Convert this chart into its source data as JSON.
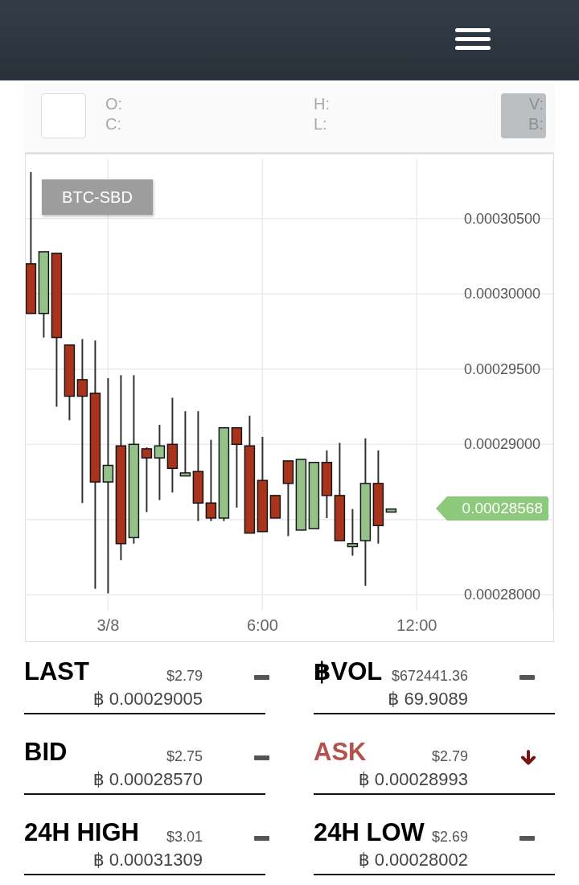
{
  "chart_data": {
    "type": "candlestick",
    "title": "BTC-SBD",
    "x": [
      "--03-07T21:00",
      "--03-07T21:30",
      "--03-07T22:00",
      "--03-07T22:30",
      "--03-07T23:00",
      "--03-07T23:30",
      "--03-08T00:00",
      "--03-08T00:30",
      "--03-08T01:00",
      "--03-08T01:30",
      "--03-08T02:00",
      "--03-08T02:30",
      "--03-08T03:00",
      "--03-08T03:30",
      "--03-08T04:00",
      "--03-08T04:30",
      "--03-08T05:00",
      "--03-08T05:30",
      "--03-08T06:00",
      "--03-08T06:30",
      "--03-08T07:00",
      "--03-08T07:30",
      "--03-08T08:00",
      "--03-08T08:30",
      "--03-08T09:00",
      "--03-08T09:30",
      "--03-08T10:00",
      "--03-08T10:30",
      "--03-08T11:00"
    ],
    "ohlc": [
      [
        0.000302,
        0.0003081,
        0.0002987,
        0.0002987
      ],
      [
        0.0002987,
        0.0003028,
        0.0002971,
        0.0003028
      ],
      [
        0.0003027,
        0.0003027,
        0.0002925,
        0.0002971
      ],
      [
        0.0002966,
        0.0002966,
        0.0002916,
        0.0002932
      ],
      [
        0.0002943,
        0.000297,
        0.0002861,
        0.0002932
      ],
      [
        0.0002934,
        0.0002969,
        0.0002804,
        0.0002875
      ],
      [
        0.0002875,
        0.0002944,
        0.0002801,
        0.0002886
      ],
      [
        0.0002899,
        0.0002946,
        0.0002823,
        0.0002834
      ],
      [
        0.0002838,
        0.0002946,
        0.0002834,
        0.00029
      ],
      [
        0.0002897,
        0.0002898,
        0.0002855,
        0.0002891
      ],
      [
        0.0002891,
        0.0002913,
        0.0002863,
        0.0002899
      ],
      [
        0.00029,
        0.0002931,
        0.0002868,
        0.0002884
      ],
      [
        0.0002879,
        0.0002922,
        0.0002879,
        0.0002881
      ],
      [
        0.0002882,
        0.0002922,
        0.0002849,
        0.0002861
      ],
      [
        0.0002861,
        0.0002903,
        0.0002849,
        0.0002851
      ],
      [
        0.0002851,
        0.0002911,
        0.0002849,
        0.0002911
      ],
      [
        0.0002911,
        0.0002911,
        0.0002858,
        0.00029
      ],
      [
        0.0002899,
        0.0002919,
        0.0002841,
        0.0002841
      ],
      [
        0.0002876,
        0.0002905,
        0.0002842,
        0.0002842
      ],
      [
        0.0002866,
        0.0002866,
        0.0002851,
        0.0002851
      ],
      [
        0.0002889,
        0.0002889,
        0.0002839,
        0.0002874
      ],
      [
        0.0002843,
        0.000289,
        0.0002843,
        0.000289
      ],
      [
        0.0002844,
        0.0002888,
        0.0002844,
        0.0002888
      ],
      [
        0.0002888,
        0.0002896,
        0.0002851,
        0.0002866
      ],
      [
        0.0002866,
        0.0002901,
        0.0002836,
        0.0002836
      ],
      [
        0.0002832,
        0.0002857,
        0.0002826,
        0.0002834
      ],
      [
        0.0002836,
        0.0002904,
        0.0002806,
        0.0002874
      ],
      [
        0.0002874,
        0.0002896,
        0.0002834,
        0.0002846
      ],
      [
        0.0002855,
        0.0002857,
        0.0002855,
        0.0002857
      ]
    ],
    "colors": [
      "#a8341c",
      "#94c28a",
      "#a8341c",
      "#a8341c",
      "#a8341c",
      "#a8341c",
      "#94c28a",
      "#a8341c",
      "#94c28a",
      "#a8341c",
      "#94c28a",
      "#a8341c",
      "#94c28a",
      "#a8341c",
      "#a8341c",
      "#94c28a",
      "#a8341c",
      "#a8341c",
      "#a8341c",
      "#a8341c",
      "#a8341c",
      "#94c28a",
      "#94c28a",
      "#a8341c",
      "#a8341c",
      "#94c28a",
      "#94c28a",
      "#a8341c",
      "#94c28a"
    ],
    "xlim": [
      "--03-07T20:48",
      "--03-08T17:18"
    ],
    "xticks": [
      {
        "value": "--03-08T00:00",
        "label": "3/8"
      },
      {
        "value": "--03-08T06:00",
        "label": "6:00"
      },
      {
        "value": "--03-08T12:00",
        "label": "12:00"
      }
    ],
    "ylim": [
      0.000279,
      0.000309
    ],
    "yticks": [
      {
        "value": 0.00028,
        "label": "0.00028000"
      },
      {
        "value": 0.000285,
        "label": null
      },
      {
        "value": 0.00029,
        "label": "0.00029000"
      },
      {
        "value": 0.000295,
        "label": "0.00029500"
      },
      {
        "value": 0.0003,
        "label": "0.00030000"
      },
      {
        "value": 0.000305,
        "label": "0.00030500"
      }
    ],
    "grid": true,
    "annotations": [
      "O:",
      "C:",
      "H:",
      "L:",
      "V:",
      "B:",
      "LAST",
      "$2.79",
      "฿ 0.00029005",
      "฿VOL",
      "$672441.36",
      "฿ 69.9089",
      "BID",
      "$2.75",
      "฿ 0.00028570",
      "ASK",
      "$2.79",
      "฿ 0.00028993",
      "24H HIGH",
      "$3.01",
      "฿ 0.00031309",
      "24H LOW",
      "$2.69",
      "฿ 0.00028002",
      "0.00028568"
    ]
  }
}
